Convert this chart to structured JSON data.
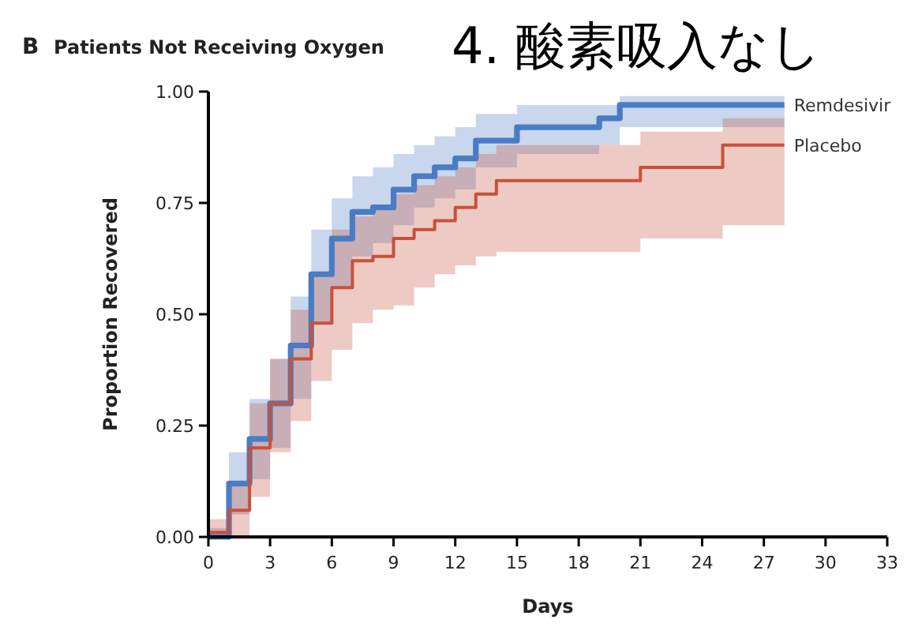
{
  "chart_data": {
    "type": "step",
    "title": "Patients Not Receiving Oxygen",
    "xlabel": "Days",
    "ylabel": "Proportion Recovered",
    "annotations": [
      "B",
      "4. 酸素吸入なし"
    ],
    "series": [
      {
        "name": "Remdesivir",
        "color": "#4a7cc4",
        "x": [
          0,
          1,
          2,
          3,
          4,
          5,
          6,
          7,
          8,
          9,
          10,
          11,
          12,
          13,
          15,
          19,
          20,
          28
        ],
        "values": [
          0,
          0.12,
          0.22,
          0.3,
          0.43,
          0.59,
          0.67,
          0.73,
          0.74,
          0.78,
          0.81,
          0.83,
          0.85,
          0.89,
          0.92,
          0.94,
          0.97,
          0.97
        ],
        "lower": [
          0,
          0.05,
          0.13,
          0.2,
          0.31,
          0.48,
          0.56,
          0.63,
          0.66,
          0.7,
          0.74,
          0.76,
          0.78,
          0.83,
          0.86,
          0.88,
          0.92,
          0.92
        ],
        "upper": [
          0.02,
          0.19,
          0.31,
          0.4,
          0.54,
          0.69,
          0.76,
          0.81,
          0.83,
          0.86,
          0.88,
          0.9,
          0.92,
          0.95,
          0.97,
          0.97,
          0.99,
          0.99
        ]
      },
      {
        "name": "Placebo",
        "color": "#c8513a",
        "x": [
          0,
          1,
          2,
          3,
          4,
          5,
          6,
          7,
          8,
          9,
          10,
          11,
          12,
          13,
          14,
          21,
          25,
          28
        ],
        "values": [
          0.01,
          0.06,
          0.2,
          0.3,
          0.4,
          0.48,
          0.56,
          0.62,
          0.63,
          0.67,
          0.69,
          0.71,
          0.74,
          0.77,
          0.8,
          0.83,
          0.88,
          0.88
        ],
        "lower": [
          0,
          0,
          0.09,
          0.19,
          0.26,
          0.35,
          0.42,
          0.48,
          0.51,
          0.52,
          0.56,
          0.59,
          0.61,
          0.63,
          0.64,
          0.67,
          0.7,
          0.7
        ],
        "upper": [
          0.04,
          0.12,
          0.3,
          0.4,
          0.51,
          0.59,
          0.69,
          0.72,
          0.74,
          0.77,
          0.79,
          0.81,
          0.83,
          0.86,
          0.88,
          0.91,
          0.94,
          0.94
        ]
      }
    ],
    "xlim": [
      0,
      33
    ],
    "xticks": [
      0,
      3,
      6,
      9,
      12,
      15,
      18,
      21,
      24,
      27,
      30,
      33
    ],
    "ylim": [
      0,
      1
    ],
    "yticks": [
      {
        "value": 0,
        "label": "0.00"
      },
      {
        "value": 0.25,
        "label": "0.25"
      },
      {
        "value": 0.5,
        "label": "0.50"
      },
      {
        "value": 0.75,
        "label": "0.75"
      },
      {
        "value": 1,
        "label": "1.00"
      }
    ],
    "legend": false,
    "grid": false,
    "marker": "none",
    "line_style": "solid"
  }
}
